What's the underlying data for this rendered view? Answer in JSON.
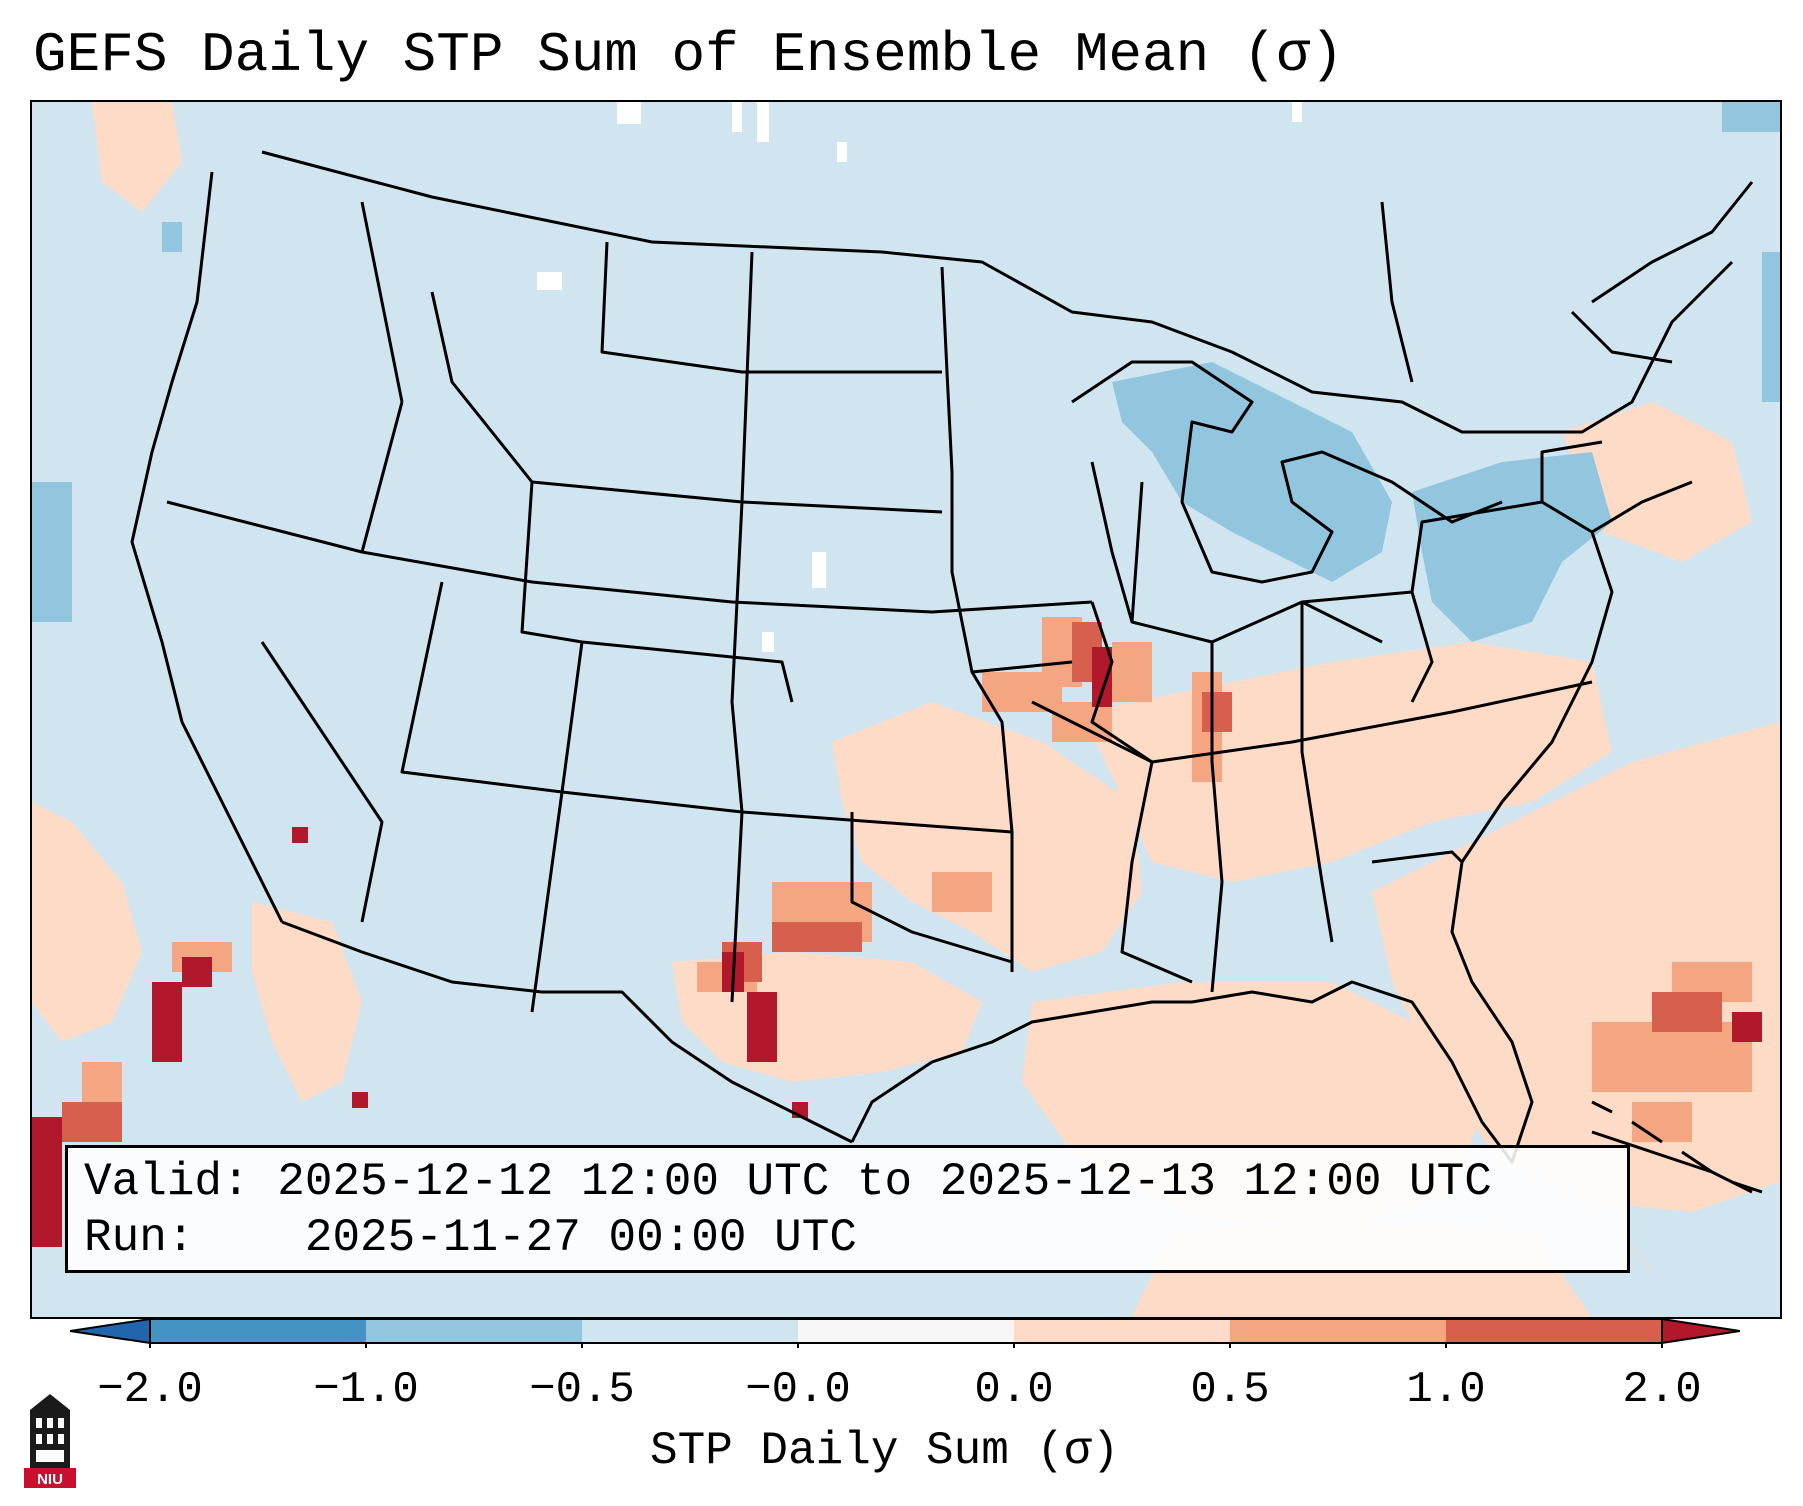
{
  "title": "GEFS Daily STP Sum of Ensemble Mean (σ)",
  "info": {
    "valid_label": "Valid:",
    "valid_value": "2025-12-12 12:00 UTC to 2025-12-13 12:00 UTC",
    "run_label": "Run:",
    "run_value": "2025-11-27 00:00 UTC"
  },
  "colorbar": {
    "label": "STP Daily Sum (σ)",
    "ticks": [
      "−2.0",
      "−1.0",
      "−0.5",
      "−0.0",
      "0.0",
      "0.5",
      "1.0",
      "2.0"
    ],
    "bins": [
      {
        "from": -2.0,
        "to": -1.0,
        "color": "#4393c3"
      },
      {
        "from": -1.0,
        "to": -0.5,
        "color": "#92c5de"
      },
      {
        "from": -0.5,
        "to": 0.0,
        "color": "#d1e5f0"
      },
      {
        "from": 0.0,
        "to": 0.0,
        "color": "#f7f7f7"
      },
      {
        "from": 0.0,
        "to": 0.5,
        "color": "#fddbc7"
      },
      {
        "from": 0.5,
        "to": 1.0,
        "color": "#f4a582"
      },
      {
        "from": 1.0,
        "to": 2.0,
        "color": "#d6604d"
      }
    ],
    "under_color": "#2166ac",
    "over_color": "#b2182b"
  },
  "logo": {
    "text": "NIU",
    "color": "#c8102e"
  }
}
